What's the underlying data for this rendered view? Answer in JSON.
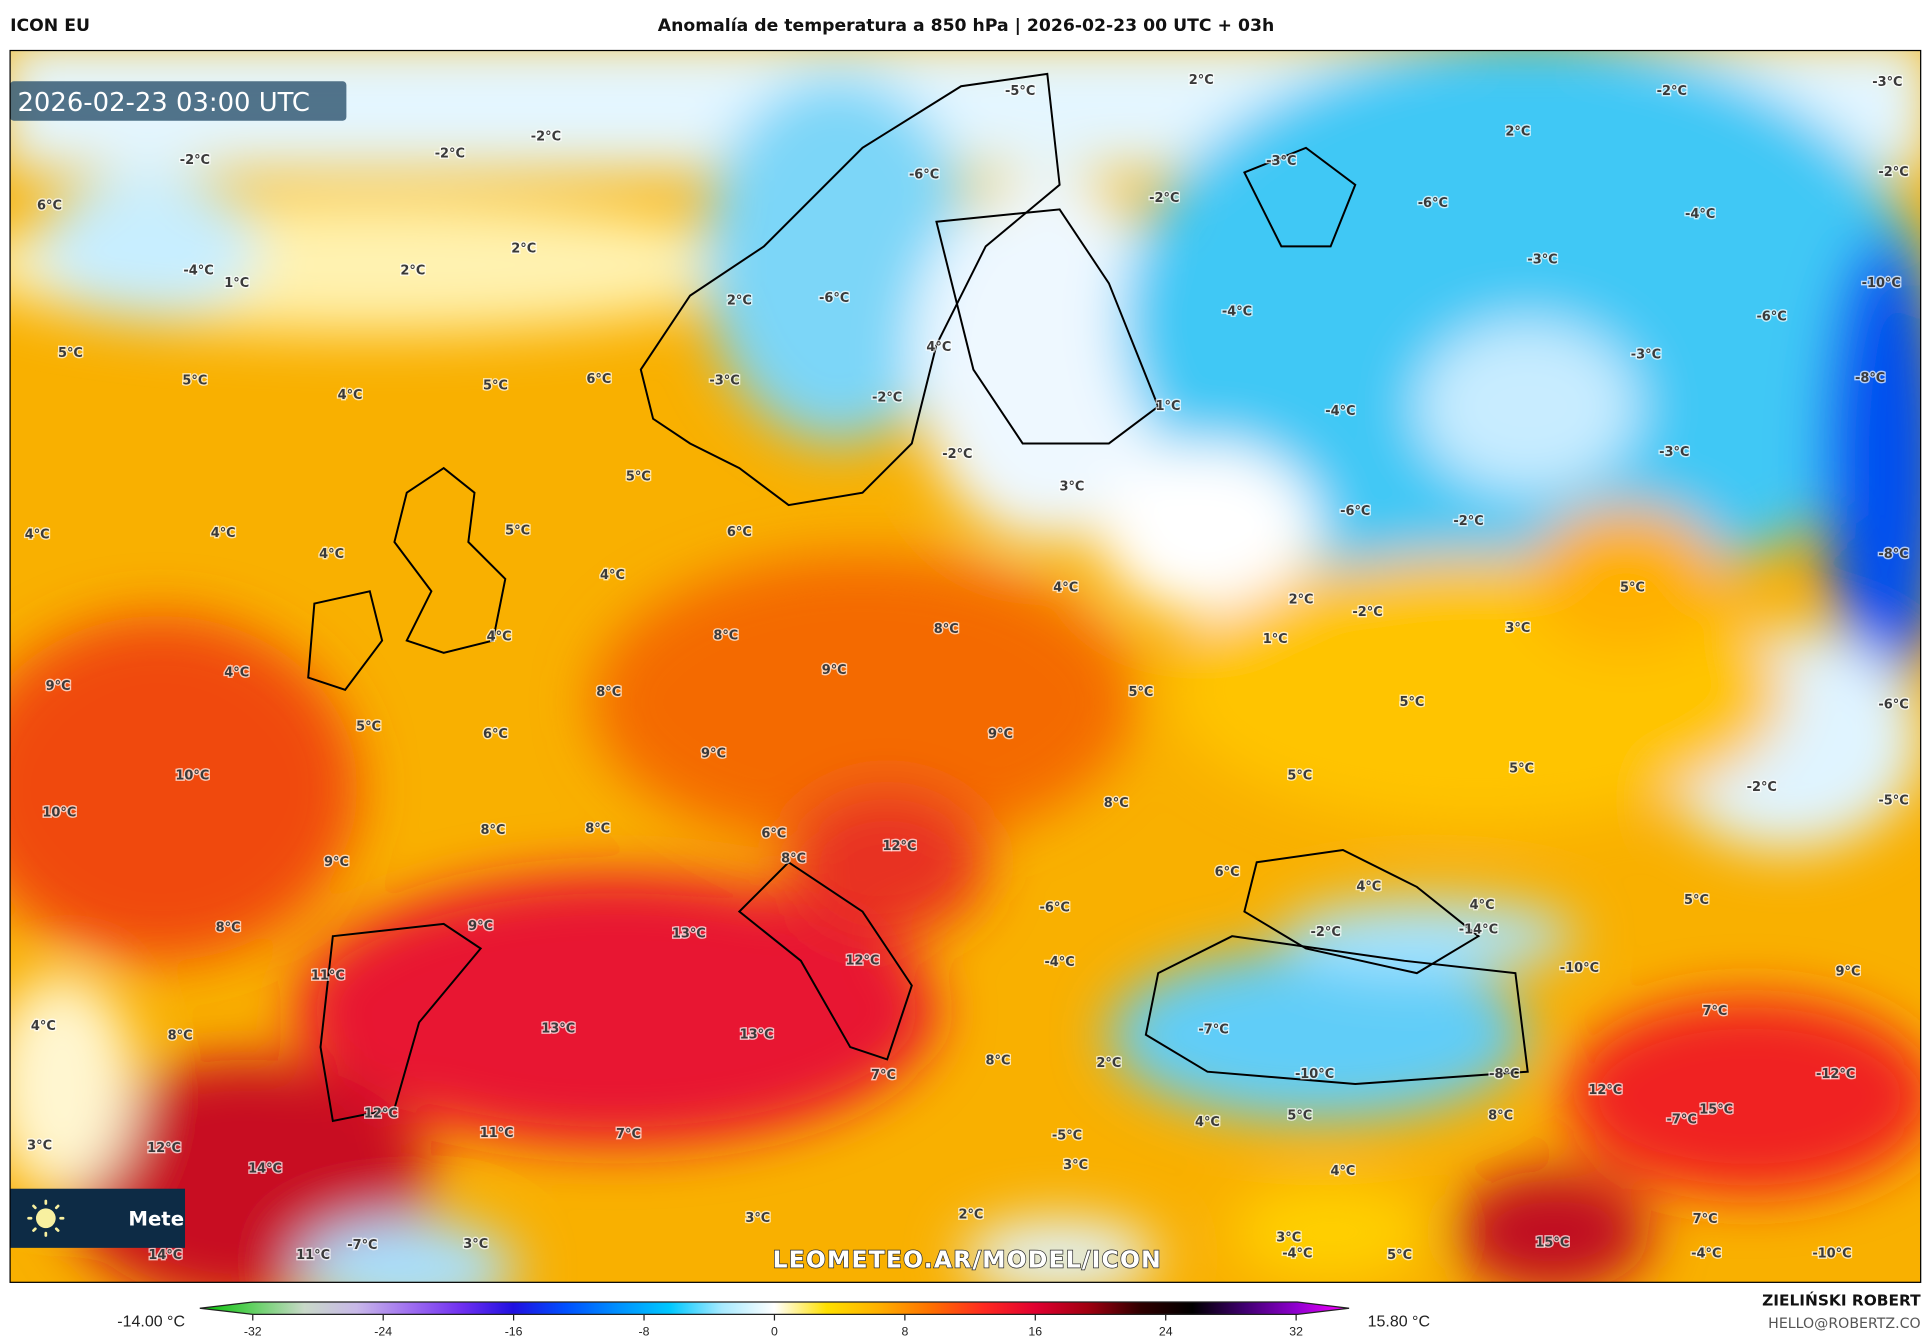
{
  "header": {
    "model": "ICON EU",
    "title": "Anomalía de temperatura a 850 hPa | 2026-02-23 00 UTC + 03h"
  },
  "map": {
    "valid_time": "2026-02-23 03:00 UTC",
    "watermark": "LEOMETEO.AR/MODEL/ICON",
    "logo_text": "Mete",
    "logo_icon": "sun-icon",
    "labels": [
      "-5°C",
      "2°C",
      "-2°C",
      "-3°C",
      "-2°C",
      "-2°C",
      "-2°C",
      "-6°C",
      "-3°C",
      "2°C",
      "-2°C",
      "-2°C",
      "-6°C",
      "-4°C",
      "6°C",
      "-4°C",
      "1°C",
      "2°C",
      "2°C",
      "-3°C",
      "-10°C",
      "2°C",
      "-6°C",
      "-4°C",
      "-6°C",
      "5°C",
      "5°C",
      "4°C",
      "5°C",
      "6°C",
      "-3°C",
      "4°C",
      "-2°C",
      "1°C",
      "-3°C",
      "-8°C",
      "-4°C",
      "5°C",
      "-2°C",
      "3°C",
      "-3°C",
      "4°C",
      "4°C",
      "4°C",
      "5°C",
      "6°C",
      "4°C",
      "-6°C",
      "-2°C",
      "-8°C",
      "4°C",
      "2°C",
      "-2°C",
      "5°C",
      "3°C",
      "4°C",
      "8°C",
      "8°C",
      "1°C",
      "9°C",
      "4°C",
      "8°C",
      "9°C",
      "5°C",
      "5°C",
      "-6°C",
      "5°C",
      "6°C",
      "9°C",
      "9°C",
      "5°C",
      "5°C",
      "-2°C",
      "10°C",
      "10°C",
      "-5°C",
      "8°C",
      "8°C",
      "6°C",
      "8°C",
      "12°C",
      "9°C",
      "8°C",
      "6°C",
      "4°C",
      "4°C",
      "5°C",
      "8°C",
      "9°C",
      "13°C",
      "-6°C",
      "-2°C",
      "-14°C",
      "11°C",
      "12°C",
      "-4°C",
      "-10°C",
      "9°C",
      "4°C",
      "8°C",
      "13°C",
      "13°C",
      "-7°C",
      "7°C",
      "8°C",
      "2°C",
      "7°C",
      "-10°C",
      "-8°C",
      "12°C",
      "-7°C",
      "15°C",
      "-12°C",
      "12°C",
      "11°C",
      "7°C",
      "4°C",
      "5°C",
      "8°C",
      "-5°C",
      "3°C",
      "12°C",
      "14°C",
      "3°C",
      "4°C",
      "2°C",
      "3°C",
      "7°C",
      "11°C",
      "-7°C",
      "3°C",
      "14°C",
      "15°C",
      "5°C",
      "-4°C",
      "3°C",
      "-4°C",
      "-10°C"
    ]
  },
  "colorbar": {
    "min_label": "-14.00 °C",
    "max_label": "15.80 °C",
    "ticks": [
      "-32",
      "-24",
      "-16",
      "-8",
      "0",
      "8",
      "16",
      "24",
      "32"
    ],
    "colors": [
      "#00c000",
      "#60d060",
      "#c8d8c8",
      "#c8b8e8",
      "#a070f0",
      "#7030f0",
      "#2010e0",
      "#0050ff",
      "#0090ff",
      "#00c8ff",
      "#a8eaff",
      "#ffffff",
      "#ffe000",
      "#ffb000",
      "#ff7000",
      "#ff2a20",
      "#e00030",
      "#a00010",
      "#300000",
      "#000000",
      "#400070",
      "#9000d0",
      "#ff00ff"
    ]
  },
  "credits": {
    "author": "ZIELIŃSKI ROBERT",
    "contact": "HELLO@ROBERTZ.CO"
  }
}
